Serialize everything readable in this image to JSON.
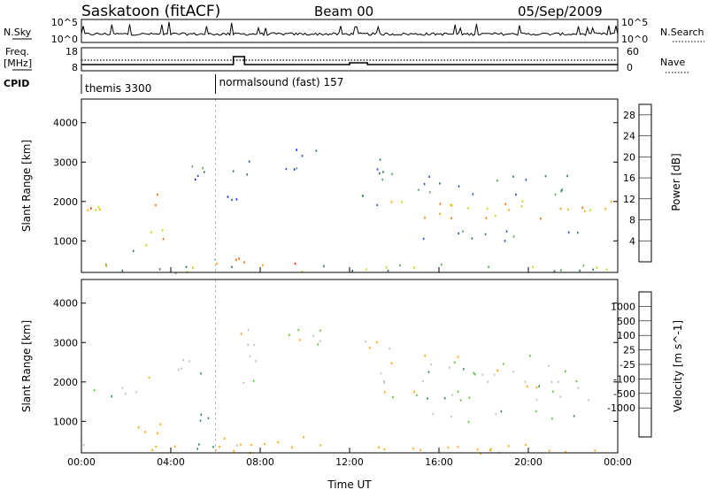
{
  "header": {
    "station": "Saskatoon (fitACF)",
    "beam": "Beam 00",
    "date": "05/Sep/2009"
  },
  "nsky_panel": {
    "left_label": "N.Sky",
    "left_ticks": [
      "10^5",
      "10^0"
    ],
    "right_label": "N.Search",
    "right_ticks": [
      "10^5",
      "10^0"
    ]
  },
  "freq_panel": {
    "left_label_1": "Freq.",
    "left_label_2": "[MHz]",
    "left_ticks": [
      "18",
      "8"
    ],
    "right_label": "Nave",
    "right_ticks": [
      "60",
      "0"
    ]
  },
  "cpid_panel": {
    "label": "CPID",
    "programs": [
      {
        "name": "themis 3300",
        "start_hour": 0
      },
      {
        "name": "normalsound (fast) 157",
        "start_hour": 6
      }
    ]
  },
  "colors": {
    "power_scale": [
      "#1a1aff",
      "#2a52b8",
      "#2e7d4f",
      "#4caf50",
      "#c8d400",
      "#ffa500",
      "#ff6a00",
      "#ff2a00",
      "#e00000"
    ],
    "velocity_scale": [
      "#1a3fd8",
      "#2a6aa8",
      "#2e8b57",
      "#5ac83c",
      "#c0c0c0",
      "#c0c0c0",
      "#ffa500",
      "#ff7a00",
      "#ff3000",
      "#e00000"
    ]
  },
  "chart_data": [
    {
      "type": "heatmap",
      "panel": "power",
      "ylabel": "Slant Range [km]",
      "xlabel": "",
      "x_ticks": [
        "00:00",
        "04:00",
        "08:00",
        "12:00",
        "16:00",
        "20:00",
        "00:00"
      ],
      "xlim_hours": [
        0,
        24
      ],
      "ylim": [
        200,
        4600
      ],
      "y_ticks": [
        "1000",
        "2000",
        "3000",
        "4000"
      ],
      "colorbar_label": "Power [dB]",
      "colorbar_ticks": [
        "4",
        "8",
        "12",
        "16",
        "20",
        "24",
        "28"
      ],
      "colorbar_range": [
        0,
        30
      ],
      "echo_regions": [
        {
          "t0": 0.0,
          "t1": 2.9,
          "r0": 1650,
          "r1": 1950,
          "value": 20
        },
        {
          "t0": 2.8,
          "t1": 3.7,
          "r0": 700,
          "r1": 2300,
          "value": 18
        },
        {
          "t0": 1.5,
          "t1": 2.6,
          "r0": 700,
          "r1": 900,
          "value": 10
        },
        {
          "t0": 4.3,
          "t1": 5.5,
          "r0": 2200,
          "r1": 3000,
          "value": 8
        },
        {
          "t0": 5.0,
          "t1": 6.2,
          "r0": 300,
          "r1": 1200,
          "value": 14
        },
        {
          "t0": 6.0,
          "t1": 10.0,
          "r0": 400,
          "r1": 700,
          "value": 22
        },
        {
          "t0": 6.5,
          "t1": 8.0,
          "r0": 2000,
          "r1": 3400,
          "value": 6
        },
        {
          "t0": 9.0,
          "t1": 11.0,
          "r0": 2800,
          "r1": 3400,
          "value": 6
        },
        {
          "t0": 0.0,
          "t1": 24.0,
          "r0": 200,
          "r1": 450,
          "value": 12
        },
        {
          "t0": 12.5,
          "t1": 14.0,
          "r0": 1900,
          "r1": 3200,
          "value": 10
        },
        {
          "t0": 13.5,
          "t1": 24.0,
          "r0": 1550,
          "r1": 2050,
          "value": 18
        },
        {
          "t0": 14.5,
          "t1": 22.5,
          "r0": 1000,
          "r1": 1300,
          "value": 8
        },
        {
          "t0": 15.0,
          "t1": 22.0,
          "r0": 2200,
          "r1": 2700,
          "value": 8
        }
      ]
    },
    {
      "type": "heatmap",
      "panel": "velocity",
      "ylabel": "Slant Range [km]",
      "xlabel": "Time UT",
      "x_ticks": [
        "00:00",
        "04:00",
        "08:00",
        "12:00",
        "16:00",
        "20:00",
        "00:00"
      ],
      "xlim_hours": [
        0,
        24
      ],
      "ylim": [
        200,
        4600
      ],
      "y_ticks": [
        "1000",
        "2000",
        "3000",
        "4000"
      ],
      "colorbar_label": "Velocity [m s^-1]",
      "colorbar_ticks": [
        "1000",
        "500",
        "100",
        "25",
        "-25",
        "-100",
        "-500",
        "-1000"
      ],
      "colorbar_range": [
        -1200,
        1200
      ],
      "echo_regions": [
        {
          "t0": 0.0,
          "t1": 2.9,
          "r0": 1650,
          "r1": 1950,
          "value": 0
        },
        {
          "t0": 2.8,
          "t1": 3.7,
          "r0": 700,
          "r1": 2300,
          "value": -300
        },
        {
          "t0": 1.5,
          "t1": 2.6,
          "r0": 700,
          "r1": 900,
          "value": -200
        },
        {
          "t0": 4.3,
          "t1": 5.5,
          "r0": 2200,
          "r1": 3000,
          "value": 0
        },
        {
          "t0": 5.0,
          "t1": 6.2,
          "r0": 300,
          "r1": 1200,
          "value": 150
        },
        {
          "t0": 6.0,
          "t1": 10.0,
          "r0": 400,
          "r1": 700,
          "value": -150
        },
        {
          "t0": 6.5,
          "t1": 8.0,
          "r0": 2000,
          "r1": 3400,
          "value": 0
        },
        {
          "t0": 9.0,
          "t1": 11.0,
          "r0": 2800,
          "r1": 3400,
          "value": 0
        },
        {
          "t0": 0.0,
          "t1": 24.0,
          "r0": 200,
          "r1": 450,
          "value": -200
        },
        {
          "t0": 12.5,
          "t1": 14.0,
          "r0": 1900,
          "r1": 3200,
          "value": 0
        },
        {
          "t0": 13.5,
          "t1": 24.0,
          "r0": 1550,
          "r1": 2050,
          "value": 0
        },
        {
          "t0": 14.5,
          "t1": 22.5,
          "r0": 1000,
          "r1": 1300,
          "value": 0
        },
        {
          "t0": 15.0,
          "t1": 22.0,
          "r0": 2200,
          "r1": 2700,
          "value": 0
        }
      ]
    }
  ]
}
